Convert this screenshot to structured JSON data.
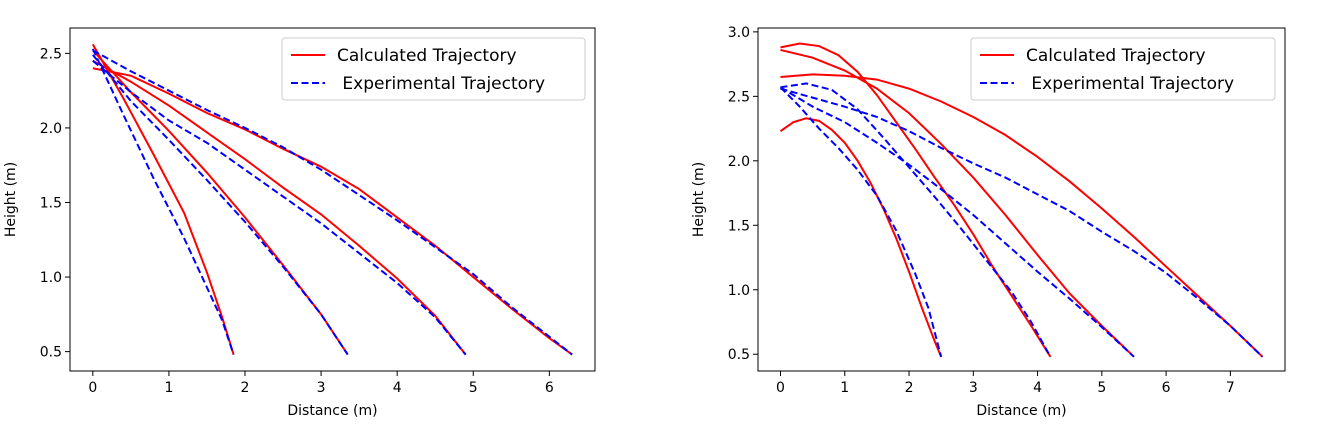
{
  "chart_data": [
    {
      "type": "line",
      "xlabel": "Distance (m)",
      "ylabel": "Height (m)",
      "xlim": [
        -0.3,
        6.6
      ],
      "ylim": [
        0.37,
        2.67
      ],
      "xticks": [
        0,
        1,
        2,
        3,
        4,
        5,
        6
      ],
      "yticks": [
        0.5,
        1.0,
        1.5,
        2.0,
        2.5
      ],
      "xtick_labels": [
        "0",
        "1",
        "2",
        "3",
        "4",
        "5",
        "6"
      ],
      "ytick_labels": [
        "0.5",
        "1.0",
        "1.5",
        "2.0",
        "2.5"
      ],
      "grid": false,
      "legend_position": "top-right",
      "legend": [
        "Calculated Trajectory",
        " Experimental Trajectory"
      ],
      "colors": {
        "calculated": "#ff0000",
        "experimental": "#0000ff"
      },
      "series": [
        {
          "group": "calculated",
          "points": [
            [
              0,
              2.56
            ],
            [
              0.4,
              2.2
            ],
            [
              0.8,
              1.82
            ],
            [
              1.2,
              1.43
            ],
            [
              1.5,
              1.03
            ],
            [
              1.7,
              0.73
            ],
            [
              1.85,
              0.48
            ]
          ]
        },
        {
          "group": "calculated",
          "points": [
            [
              0,
              2.52
            ],
            [
              0.5,
              2.24
            ],
            [
              1.0,
              1.98
            ],
            [
              1.5,
              1.7
            ],
            [
              2.0,
              1.4
            ],
            [
              2.5,
              1.08
            ],
            [
              3.0,
              0.75
            ],
            [
              3.35,
              0.48
            ]
          ]
        },
        {
          "group": "calculated",
          "points": [
            [
              0,
              2.45
            ],
            [
              0.5,
              2.31
            ],
            [
              1.0,
              2.15
            ],
            [
              1.5,
              1.97
            ],
            [
              2.0,
              1.79
            ],
            [
              2.5,
              1.6
            ],
            [
              3.0,
              1.42
            ],
            [
              3.5,
              1.21
            ],
            [
              4.0,
              0.99
            ],
            [
              4.5,
              0.74
            ],
            [
              4.9,
              0.48
            ]
          ]
        },
        {
          "group": "calculated",
          "points": [
            [
              0,
              2.4
            ],
            [
              0.5,
              2.35
            ],
            [
              1.0,
              2.23
            ],
            [
              1.5,
              2.1
            ],
            [
              2.0,
              1.99
            ],
            [
              2.5,
              1.86
            ],
            [
              3.0,
              1.74
            ],
            [
              3.5,
              1.59
            ],
            [
              4.0,
              1.4
            ],
            [
              4.5,
              1.21
            ],
            [
              5.0,
              1.0
            ],
            [
              5.5,
              0.79
            ],
            [
              6.0,
              0.59
            ],
            [
              6.3,
              0.48
            ]
          ]
        },
        {
          "group": "experimental",
          "points": [
            [
              0,
              2.53
            ],
            [
              0.4,
              2.09
            ],
            [
              0.8,
              1.66
            ],
            [
              1.2,
              1.26
            ],
            [
              1.5,
              0.93
            ],
            [
              1.7,
              0.71
            ],
            [
              1.85,
              0.48
            ]
          ]
        },
        {
          "group": "experimental",
          "points": [
            [
              0,
              2.49
            ],
            [
              0.5,
              2.18
            ],
            [
              1.0,
              1.92
            ],
            [
              1.5,
              1.65
            ],
            [
              2.0,
              1.37
            ],
            [
              2.5,
              1.07
            ],
            [
              3.0,
              0.75
            ],
            [
              3.35,
              0.48
            ]
          ]
        },
        {
          "group": "experimental",
          "points": [
            [
              0,
              2.45
            ],
            [
              0.5,
              2.24
            ],
            [
              1.0,
              2.05
            ],
            [
              1.5,
              1.9
            ],
            [
              2.0,
              1.72
            ],
            [
              2.5,
              1.54
            ],
            [
              3.0,
              1.36
            ],
            [
              3.5,
              1.16
            ],
            [
              4.0,
              0.96
            ],
            [
              4.5,
              0.73
            ],
            [
              4.9,
              0.48
            ]
          ]
        },
        {
          "group": "experimental",
          "points": [
            [
              0,
              2.52
            ],
            [
              0.5,
              2.38
            ],
            [
              1.0,
              2.25
            ],
            [
              1.5,
              2.12
            ],
            [
              2.0,
              2.0
            ],
            [
              2.5,
              1.87
            ],
            [
              3.0,
              1.72
            ],
            [
              3.5,
              1.55
            ],
            [
              4.0,
              1.38
            ],
            [
              4.5,
              1.2
            ],
            [
              5.0,
              1.02
            ],
            [
              5.5,
              0.8
            ],
            [
              6.0,
              0.6
            ],
            [
              6.3,
              0.48
            ]
          ]
        }
      ]
    },
    {
      "type": "line",
      "xlabel": "Distance (m)",
      "ylabel": "Height (m)",
      "xlim": [
        -0.35,
        7.85
      ],
      "ylim": [
        0.37,
        3.03
      ],
      "xticks": [
        0,
        1,
        2,
        3,
        4,
        5,
        6,
        7
      ],
      "yticks": [
        0.5,
        1.0,
        1.5,
        2.0,
        2.5,
        3.0
      ],
      "xtick_labels": [
        "0",
        "1",
        "2",
        "3",
        "4",
        "5",
        "6",
        "7"
      ],
      "ytick_labels": [
        "0.5",
        "1.0",
        "1.5",
        "2.0",
        "2.5",
        "3.0"
      ],
      "grid": false,
      "legend_position": "top-right",
      "legend": [
        "Calculated Trajectory",
        " Experimental Trajectory"
      ],
      "colors": {
        "calculated": "#ff0000",
        "experimental": "#0000ff"
      },
      "series": [
        {
          "group": "calculated",
          "points": [
            [
              0,
              2.23
            ],
            [
              0.2,
              2.3
            ],
            [
              0.4,
              2.33
            ],
            [
              0.6,
              2.31
            ],
            [
              0.8,
              2.24
            ],
            [
              1.0,
              2.14
            ],
            [
              1.2,
              2.0
            ],
            [
              1.4,
              1.83
            ],
            [
              1.6,
              1.63
            ],
            [
              1.8,
              1.4
            ],
            [
              2.0,
              1.14
            ],
            [
              2.2,
              0.86
            ],
            [
              2.4,
              0.6
            ],
            [
              2.5,
              0.48
            ]
          ]
        },
        {
          "group": "calculated",
          "points": [
            [
              0,
              2.88
            ],
            [
              0.3,
              2.91
            ],
            [
              0.6,
              2.89
            ],
            [
              0.9,
              2.82
            ],
            [
              1.2,
              2.69
            ],
            [
              1.5,
              2.51
            ],
            [
              1.8,
              2.3
            ],
            [
              2.1,
              2.09
            ],
            [
              2.4,
              1.87
            ],
            [
              2.7,
              1.66
            ],
            [
              3.0,
              1.43
            ],
            [
              3.3,
              1.18
            ],
            [
              3.6,
              0.95
            ],
            [
              3.9,
              0.72
            ],
            [
              4.2,
              0.48
            ]
          ]
        },
        {
          "group": "calculated",
          "points": [
            [
              0,
              2.86
            ],
            [
              0.5,
              2.8
            ],
            [
              1.0,
              2.7
            ],
            [
              1.5,
              2.56
            ],
            [
              2.0,
              2.37
            ],
            [
              2.5,
              2.13
            ],
            [
              3.0,
              1.87
            ],
            [
              3.5,
              1.58
            ],
            [
              4.0,
              1.27
            ],
            [
              4.5,
              0.97
            ],
            [
              5.0,
              0.72
            ],
            [
              5.5,
              0.48
            ]
          ]
        },
        {
          "group": "calculated",
          "points": [
            [
              0,
              2.65
            ],
            [
              0.5,
              2.67
            ],
            [
              1.0,
              2.66
            ],
            [
              1.5,
              2.63
            ],
            [
              2.0,
              2.56
            ],
            [
              2.5,
              2.46
            ],
            [
              3.0,
              2.34
            ],
            [
              3.5,
              2.2
            ],
            [
              4.0,
              2.03
            ],
            [
              4.5,
              1.84
            ],
            [
              5.0,
              1.63
            ],
            [
              5.5,
              1.41
            ],
            [
              6.0,
              1.18
            ],
            [
              6.5,
              0.95
            ],
            [
              7.0,
              0.72
            ],
            [
              7.5,
              0.48
            ]
          ]
        },
        {
          "group": "experimental",
          "points": [
            [
              0,
              2.57
            ],
            [
              0.3,
              2.42
            ],
            [
              0.6,
              2.25
            ],
            [
              0.9,
              2.1
            ],
            [
              1.2,
              1.93
            ],
            [
              1.5,
              1.73
            ],
            [
              1.8,
              1.46
            ],
            [
              2.1,
              1.12
            ],
            [
              2.3,
              0.86
            ],
            [
              2.5,
              0.48
            ]
          ]
        },
        {
          "group": "experimental",
          "points": [
            [
              0,
              2.57
            ],
            [
              0.4,
              2.6
            ],
            [
              0.8,
              2.55
            ],
            [
              1.2,
              2.4
            ],
            [
              1.6,
              2.18
            ],
            [
              2.0,
              1.95
            ],
            [
              2.4,
              1.72
            ],
            [
              2.8,
              1.48
            ],
            [
              3.2,
              1.23
            ],
            [
              3.6,
              0.98
            ],
            [
              3.9,
              0.75
            ],
            [
              4.2,
              0.48
            ]
          ]
        },
        {
          "group": "experimental",
          "points": [
            [
              0,
              2.57
            ],
            [
              0.5,
              2.42
            ],
            [
              1.0,
              2.3
            ],
            [
              1.5,
              2.14
            ],
            [
              2.0,
              1.97
            ],
            [
              2.5,
              1.78
            ],
            [
              3.0,
              1.58
            ],
            [
              3.5,
              1.36
            ],
            [
              4.0,
              1.14
            ],
            [
              4.5,
              0.93
            ],
            [
              5.0,
              0.71
            ],
            [
              5.5,
              0.48
            ]
          ]
        },
        {
          "group": "experimental",
          "points": [
            [
              0,
              2.56
            ],
            [
              0.5,
              2.49
            ],
            [
              1.0,
              2.42
            ],
            [
              1.5,
              2.34
            ],
            [
              2.0,
              2.23
            ],
            [
              2.5,
              2.1
            ],
            [
              3.0,
              1.98
            ],
            [
              3.5,
              1.87
            ],
            [
              4.0,
              1.74
            ],
            [
              4.5,
              1.61
            ],
            [
              5.0,
              1.45
            ],
            [
              5.5,
              1.3
            ],
            [
              6.0,
              1.13
            ],
            [
              6.5,
              0.93
            ],
            [
              7.0,
              0.72
            ],
            [
              7.5,
              0.48
            ]
          ]
        }
      ]
    }
  ]
}
